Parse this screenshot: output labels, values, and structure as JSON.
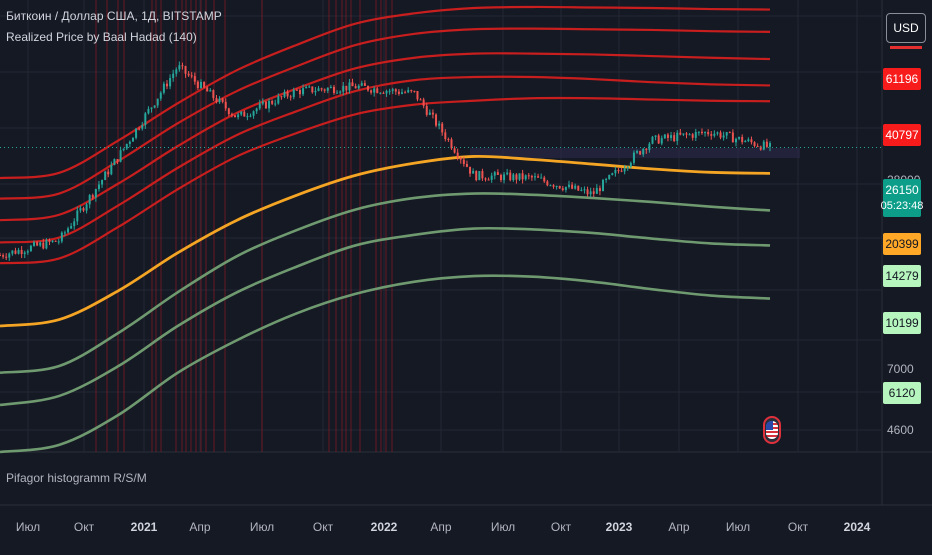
{
  "header": {
    "title": "Биткоин / Доллар США, 1Д, BITSTAMP",
    "indicator": "Realized Price by Baal Hadad (140)"
  },
  "lower_pane": {
    "title": "Pifagor histogramm R/S/M"
  },
  "currency_button": {
    "label": "USD"
  },
  "colors": {
    "background": "#151924",
    "red_band": "#c81e1e",
    "orange_band": "#f5a524",
    "green_band": "#6f9a70",
    "candle_up": "#26a69a",
    "candle_down": "#ef5350",
    "grid": "#232733"
  },
  "price_labels": {
    "red_top": {
      "text": "61196",
      "bg": "#f71b1b",
      "fg": "#ffffff"
    },
    "red_2": {
      "text": "40797",
      "bg": "#f71b1b",
      "fg": "#ffffff"
    },
    "current": {
      "text": "26150",
      "countdown": "05:23:48",
      "bg": "#0d9e8a",
      "fg": "#ffffff"
    },
    "orange": {
      "text": "20399",
      "bg": "#ffa726",
      "fg": "#131722"
    },
    "green_1": {
      "text": "14279",
      "bg": "#b6f5bd",
      "fg": "#131722"
    },
    "green_2": {
      "text": "10199",
      "bg": "#b6f5bd",
      "fg": "#131722"
    },
    "green_3": {
      "text": "6120",
      "bg": "#b6f5bd",
      "fg": "#131722"
    }
  },
  "price_scale_ticks": [
    "28000",
    "7000",
    "4600"
  ],
  "chart_data": {
    "type": "line",
    "title": "Биткоин / Доллар США, 1Д, BITSTAMP",
    "xlabel": "",
    "ylabel": "",
    "y_scale": "log",
    "x_ticks": [
      "Июл",
      "Окт",
      "2021",
      "Апр",
      "Июл",
      "Окт",
      "2022",
      "Апр",
      "Июл",
      "Окт",
      "2023",
      "Апр",
      "Июл",
      "Окт",
      "2024"
    ],
    "x_tick_bold": [
      false,
      false,
      true,
      false,
      false,
      false,
      true,
      false,
      false,
      false,
      true,
      false,
      false,
      false,
      true
    ],
    "x": [
      "2020-06",
      "2020-09",
      "2020-12",
      "2021-03",
      "2021-06",
      "2021-09",
      "2021-12",
      "2022-03",
      "2022-06",
      "2022-09",
      "2022-12",
      "2023-03",
      "2023-06",
      "2023-08"
    ],
    "series": [
      {
        "name": "",
        "kind": "price",
        "values": [
          9300,
          10700,
          24000,
          57000,
          35000,
          45000,
          47000,
          44000,
          20000,
          19500,
          16700,
          28000,
          30400,
          26150
        ]
      },
      {
        "name": "",
        "kind": "red",
        "values": [
          19500,
          20500,
          28000,
          40000,
          55000,
          70000,
          86000,
          95000,
          100000,
          101000,
          100500,
          100000,
          99000,
          98500
        ]
      },
      {
        "name": "",
        "kind": "red",
        "values": [
          16000,
          16800,
          23000,
          33000,
          45000,
          57000,
          70000,
          78000,
          81500,
          82000,
          81500,
          81000,
          80000,
          79500
        ]
      },
      {
        "name": "",
        "kind": "red",
        "values": [
          13000,
          13700,
          18500,
          26500,
          36500,
          46000,
          56000,
          62000,
          64500,
          64500,
          64000,
          63000,
          62000,
          61196
        ]
      },
      {
        "name": "",
        "kind": "red",
        "values": [
          10500,
          11000,
          15000,
          21500,
          29500,
          37000,
          45000,
          50000,
          51500,
          51500,
          50500,
          49000,
          48000,
          47500
        ]
      },
      {
        "name": "",
        "kind": "red",
        "values": [
          8600,
          9000,
          12200,
          17500,
          24000,
          30000,
          36000,
          39500,
          41000,
          42000,
          42000,
          41500,
          41000,
          40797
        ]
      },
      {
        "name": "",
        "kind": "orange",
        "values": [
          4700,
          5000,
          6600,
          9500,
          13000,
          16500,
          20000,
          22500,
          24000,
          23300,
          22300,
          21300,
          20600,
          20399
        ]
      },
      {
        "name": "",
        "kind": "green",
        "values": [
          3000,
          3200,
          4400,
          6500,
          9200,
          11800,
          14400,
          16100,
          16800,
          16600,
          16100,
          15500,
          14800,
          14279
        ]
      },
      {
        "name": "",
        "kind": "green",
        "values": [
          2200,
          2400,
          3200,
          4700,
          6500,
          8300,
          10200,
          11300,
          12000,
          11900,
          11500,
          10900,
          10400,
          10199
        ]
      },
      {
        "name": "",
        "kind": "green",
        "values": [
          1400,
          1500,
          2000,
          3000,
          4100,
          5300,
          6400,
          7200,
          7600,
          7550,
          7200,
          6700,
          6300,
          6120
        ]
      }
    ],
    "grid": true
  }
}
